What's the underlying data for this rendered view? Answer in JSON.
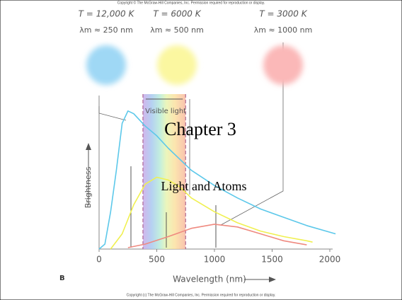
{
  "slide": {
    "title": "Chapter 3",
    "subtitle": "Light and Atoms",
    "copyright_top": "Copyright © The McGraw-Hill Companies, Inc. Permission required for reproduction or display.",
    "copyright_bottom": "Copyright (c) The McGraw-Hill Companies, Inc. Permission required for reproduction or display."
  },
  "chart_data": {
    "type": "line",
    "panel_label": "B",
    "x_label": "Wavelength (nm)",
    "y_label": "Brightness",
    "xlim": [
      0,
      2000
    ],
    "xticks": [
      0,
      500,
      1000,
      1500,
      2000
    ],
    "ylim": [
      0,
      105
    ],
    "visible_band": {
      "label": "Visible light",
      "xrange": [
        380,
        750
      ]
    },
    "series": [
      {
        "name": "T = 12,000 K",
        "peak_label": "λm ≈ 250 nm",
        "color": "#5cc8ea",
        "glow": "#9fd8f5",
        "x": [
          0,
          50,
          100,
          150,
          200,
          250,
          300,
          400,
          500,
          600,
          700,
          800,
          1000,
          1200,
          1400,
          1600,
          1800,
          2050
        ],
        "values": [
          0,
          3.6,
          27,
          57,
          91,
          100,
          98,
          89,
          82,
          73,
          65,
          57,
          46,
          37,
          29,
          23,
          17,
          11
        ]
      },
      {
        "name": "T = 6000 K",
        "peak_label": "λm ≈ 500 nm",
        "color": "#f0f050",
        "glow": "#fbf7a0",
        "x": [
          100,
          200,
          300,
          400,
          500,
          600,
          700,
          800,
          1000,
          1200,
          1400,
          1600,
          1800,
          1850
        ],
        "values": [
          0,
          11,
          32,
          47,
          52,
          50,
          45,
          37,
          27,
          19,
          13,
          9,
          6,
          5
        ]
      },
      {
        "name": "T = 3000 K",
        "peak_label": "λm ≈ 1000 nm",
        "color": "#ef8a80",
        "glow": "#fbb8b8",
        "x": [
          250,
          400,
          600,
          800,
          1000,
          1200,
          1400,
          1600,
          1800
        ],
        "values": [
          1,
          3.6,
          9,
          15,
          18,
          16,
          11,
          6,
          3
        ]
      }
    ]
  }
}
